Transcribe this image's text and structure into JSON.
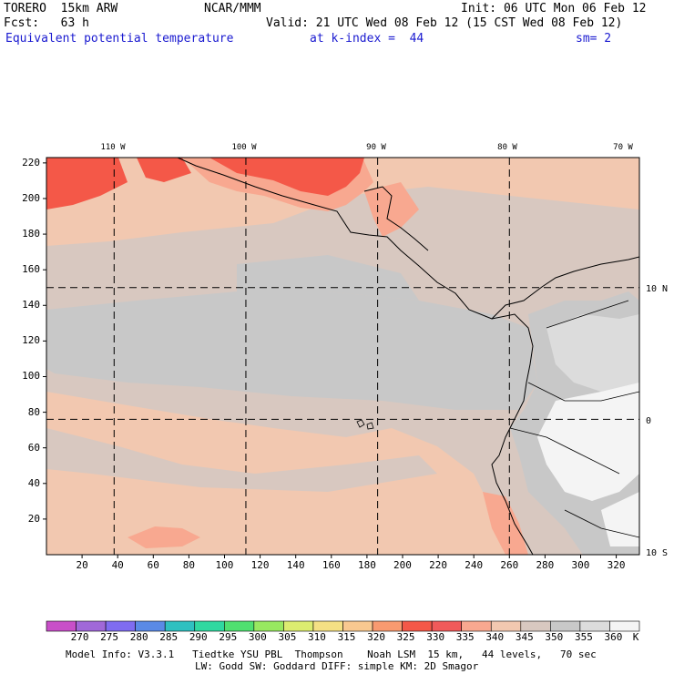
{
  "header": {
    "model_line": "TORERO  15km ARW",
    "org": "NCAR/MMM",
    "init": "Init: 06 UTC Mon 06 Feb 12",
    "fcst": "Fcst:   63 h",
    "valid": "Valid: 21 UTC Wed 08 Feb 12 (15 CST Wed 08 Feb 12)",
    "field": "Equivalent potential temperature",
    "kindex": "at k-index =  44",
    "smoothing": "sm= 2"
  },
  "map": {
    "top_lon_labels": [
      "110 W",
      "100 W",
      "90 W",
      "80 W",
      "70 W"
    ],
    "right_lat_labels": [
      "10 N",
      "0",
      "10 S"
    ],
    "y_ticks": [
      20,
      40,
      60,
      80,
      100,
      120,
      140,
      160,
      180,
      200,
      220
    ],
    "x_ticks": [
      20,
      40,
      60,
      80,
      100,
      120,
      140,
      160,
      180,
      200,
      220,
      240,
      260,
      280,
      300,
      320
    ],
    "grid_lon_x": [
      38,
      112,
      186,
      260
    ],
    "grid_lat_y": [
      150,
      76
    ]
  },
  "colorbar": {
    "unit": "K",
    "labels": [
      "270",
      "275",
      "280",
      "285",
      "290",
      "295",
      "300",
      "305",
      "310",
      "315",
      "320",
      "325",
      "330",
      "335",
      "340",
      "345",
      "350",
      "355",
      "360"
    ],
    "colors": [
      "#c84fc8",
      "#a068d8",
      "#7f6cf0",
      "#5a8ae6",
      "#2fc0c0",
      "#30d8a0",
      "#50e070",
      "#98e860",
      "#dcec70",
      "#f4e084",
      "#f8c890",
      "#f89a70",
      "#f45848",
      "#f05a5a",
      "#f8a890",
      "#f2c8b0",
      "#d8c8c0",
      "#c8c8c8",
      "#dcdcdc",
      "#f4f4f4"
    ]
  },
  "footer": {
    "line1": "Model Info: V3.3.1   Tiedtke YSU PBL  Thompson    Noah LSM  15 km,   44 levels,   70 sec",
    "line2": "LW: Godd SW: Goddard DIFF: simple KM: 2D Smagor"
  }
}
